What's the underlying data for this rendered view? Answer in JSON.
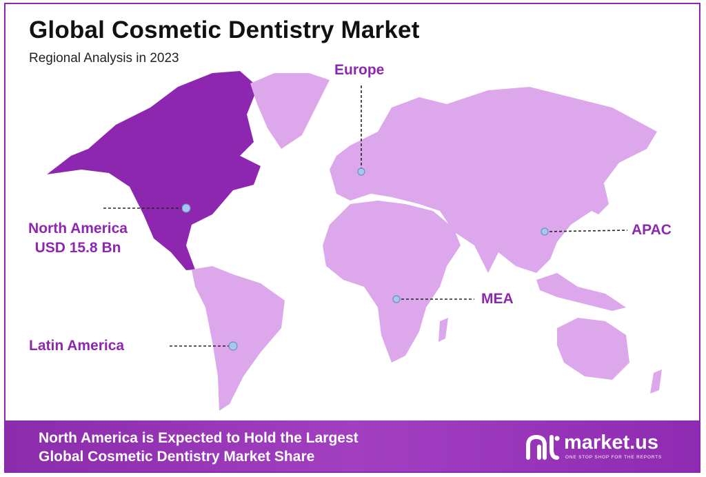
{
  "header": {
    "title": "Global Cosmetic Dentistry Market",
    "subtitle": "Regional Analysis in 2023"
  },
  "regions": {
    "europe": {
      "label": "Europe"
    },
    "north_america": {
      "label": "North America",
      "value": "USD 15.8 Bn"
    },
    "apac": {
      "label": "APAC"
    },
    "mea": {
      "label": "MEA"
    },
    "latin_america": {
      "label": "Latin America"
    }
  },
  "footer": {
    "line1": "North America is Expected to Hold the Largest",
    "line2": "Global Cosmetic Dentistry Market Share"
  },
  "brand": {
    "name": "market.us",
    "tagline": "ONE STOP SHOP FOR THE REPORTS"
  },
  "colors": {
    "highlight_region": "#8e27b0",
    "other_regions": "#dda7ec",
    "label": "#8e27b0",
    "marker": "#a9c7ee"
  }
}
